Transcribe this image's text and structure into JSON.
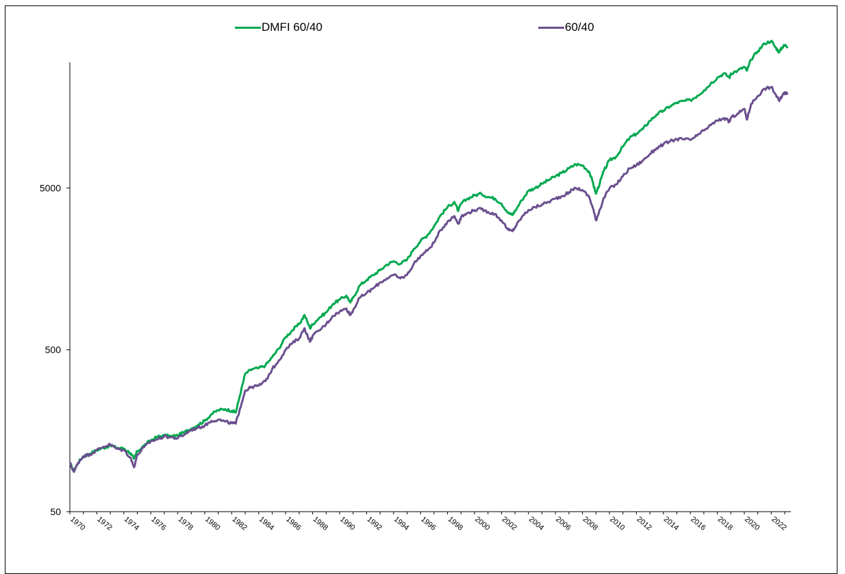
{
  "chart_data": {
    "type": "line",
    "title": "",
    "xlabel": "",
    "ylabel": "",
    "y_scale": "log",
    "ylim": [
      50,
      50000
    ],
    "xlim": [
      1970,
      2023.2
    ],
    "y_ticks": [
      "50",
      "500",
      "5000"
    ],
    "x_ticks": [
      "1970",
      "1972",
      "1974",
      "1976",
      "1978",
      "1980",
      "1982",
      "1984",
      "1986",
      "1988",
      "1990",
      "1992",
      "1994",
      "1996",
      "1998",
      "2000",
      "2002",
      "2004",
      "2006",
      "2008",
      "2010",
      "2012",
      "2014",
      "2016",
      "2018",
      "2020",
      "2022"
    ],
    "grid": false,
    "legend_position": "top",
    "series": [
      {
        "name": "DMFI 60/40",
        "color": "#00a84f",
        "points": [
          [
            1970.0,
            100
          ],
          [
            1970.3,
            89
          ],
          [
            1970.6,
            100
          ],
          [
            1971.0,
            110
          ],
          [
            1971.5,
            114
          ],
          [
            1972.0,
            120
          ],
          [
            1972.5,
            124
          ],
          [
            1973.0,
            128
          ],
          [
            1973.5,
            124
          ],
          [
            1974.0,
            123
          ],
          [
            1974.5,
            115
          ],
          [
            1974.75,
            106
          ],
          [
            1975.0,
            118
          ],
          [
            1975.5,
            128
          ],
          [
            1976.0,
            138
          ],
          [
            1976.5,
            145
          ],
          [
            1977.0,
            148
          ],
          [
            1977.5,
            146
          ],
          [
            1978.0,
            148
          ],
          [
            1978.5,
            155
          ],
          [
            1979.0,
            163
          ],
          [
            1979.5,
            172
          ],
          [
            1980.0,
            182
          ],
          [
            1980.5,
            200
          ],
          [
            1981.0,
            212
          ],
          [
            1981.5,
            215
          ],
          [
            1982.0,
            210
          ],
          [
            1982.3,
            205
          ],
          [
            1982.6,
            260
          ],
          [
            1983.0,
            355
          ],
          [
            1983.5,
            380
          ],
          [
            1984.0,
            385
          ],
          [
            1984.5,
            400
          ],
          [
            1985.0,
            450
          ],
          [
            1985.5,
            510
          ],
          [
            1986.0,
            600
          ],
          [
            1986.5,
            660
          ],
          [
            1987.0,
            720
          ],
          [
            1987.4,
            820
          ],
          [
            1987.8,
            680
          ],
          [
            1988.0,
            720
          ],
          [
            1988.5,
            790
          ],
          [
            1989.0,
            850
          ],
          [
            1989.5,
            960
          ],
          [
            1990.0,
            1020
          ],
          [
            1990.5,
            1080
          ],
          [
            1990.8,
            980
          ],
          [
            1991.0,
            1050
          ],
          [
            1991.5,
            1250
          ],
          [
            1992.0,
            1350
          ],
          [
            1992.5,
            1450
          ],
          [
            1993.0,
            1550
          ],
          [
            1993.5,
            1680
          ],
          [
            1994.0,
            1760
          ],
          [
            1994.5,
            1700
          ],
          [
            1995.0,
            1800
          ],
          [
            1995.5,
            2100
          ],
          [
            1996.0,
            2350
          ],
          [
            1996.5,
            2550
          ],
          [
            1997.0,
            2900
          ],
          [
            1997.5,
            3400
          ],
          [
            1998.0,
            3800
          ],
          [
            1998.5,
            4100
          ],
          [
            1998.8,
            3600
          ],
          [
            1999.0,
            4000
          ],
          [
            1999.5,
            4300
          ],
          [
            2000.0,
            4500
          ],
          [
            2000.5,
            4600
          ],
          [
            2001.0,
            4400
          ],
          [
            2001.5,
            4300
          ],
          [
            2002.0,
            4000
          ],
          [
            2002.5,
            3500
          ],
          [
            2002.8,
            3400
          ],
          [
            2003.0,
            3600
          ],
          [
            2003.5,
            4200
          ],
          [
            2004.0,
            4800
          ],
          [
            2004.5,
            5000
          ],
          [
            2005.0,
            5300
          ],
          [
            2005.5,
            5600
          ],
          [
            2006.0,
            5900
          ],
          [
            2006.5,
            6200
          ],
          [
            2007.0,
            6600
          ],
          [
            2007.5,
            7000
          ],
          [
            2008.0,
            6900
          ],
          [
            2008.5,
            6300
          ],
          [
            2008.8,
            5300
          ],
          [
            2009.0,
            4600
          ],
          [
            2009.3,
            5400
          ],
          [
            2009.6,
            6400
          ],
          [
            2010.0,
            7400
          ],
          [
            2010.5,
            7800
          ],
          [
            2011.0,
            9000
          ],
          [
            2011.5,
            10200
          ],
          [
            2012.0,
            10800
          ],
          [
            2012.5,
            11600
          ],
          [
            2013.0,
            13000
          ],
          [
            2013.5,
            14200
          ],
          [
            2014.0,
            15000
          ],
          [
            2014.5,
            16000
          ],
          [
            2015.0,
            16800
          ],
          [
            2015.5,
            17200
          ],
          [
            2016.0,
            17400
          ],
          [
            2016.5,
            18500
          ],
          [
            2017.0,
            20000
          ],
          [
            2017.5,
            22000
          ],
          [
            2018.0,
            24000
          ],
          [
            2018.5,
            25500
          ],
          [
            2018.9,
            24000
          ],
          [
            2019.0,
            25500
          ],
          [
            2019.5,
            26500
          ],
          [
            2020.0,
            28000
          ],
          [
            2020.2,
            26500
          ],
          [
            2020.5,
            31000
          ],
          [
            2021.0,
            35000
          ],
          [
            2021.5,
            39000
          ],
          [
            2022.0,
            40500
          ],
          [
            2022.3,
            37000
          ],
          [
            2022.6,
            34500
          ],
          [
            2022.8,
            37000
          ],
          [
            2023.0,
            38000
          ],
          [
            2023.2,
            37500
          ]
        ]
      },
      {
        "name": "60/40",
        "color": "#6a4f8e",
        "points": [
          [
            1970.0,
            100
          ],
          [
            1970.3,
            88
          ],
          [
            1970.6,
            100
          ],
          [
            1971.0,
            110
          ],
          [
            1971.5,
            113
          ],
          [
            1972.0,
            120
          ],
          [
            1972.5,
            126
          ],
          [
            1973.0,
            130
          ],
          [
            1973.5,
            122
          ],
          [
            1974.0,
            120
          ],
          [
            1974.5,
            108
          ],
          [
            1974.75,
            94
          ],
          [
            1975.0,
            112
          ],
          [
            1975.5,
            125
          ],
          [
            1976.0,
            136
          ],
          [
            1976.5,
            140
          ],
          [
            1977.0,
            146
          ],
          [
            1977.5,
            144
          ],
          [
            1978.0,
            142
          ],
          [
            1978.5,
            150
          ],
          [
            1979.0,
            160
          ],
          [
            1979.5,
            165
          ],
          [
            1980.0,
            170
          ],
          [
            1980.5,
            182
          ],
          [
            1981.0,
            185
          ],
          [
            1981.5,
            180
          ],
          [
            1982.0,
            176
          ],
          [
            1982.3,
            175
          ],
          [
            1982.6,
            215
          ],
          [
            1983.0,
            280
          ],
          [
            1983.5,
            295
          ],
          [
            1984.0,
            300
          ],
          [
            1984.5,
            320
          ],
          [
            1985.0,
            380
          ],
          [
            1985.5,
            430
          ],
          [
            1986.0,
            500
          ],
          [
            1986.5,
            550
          ],
          [
            1987.0,
            590
          ],
          [
            1987.4,
            680
          ],
          [
            1987.8,
            560
          ],
          [
            1988.0,
            610
          ],
          [
            1988.5,
            660
          ],
          [
            1989.0,
            720
          ],
          [
            1989.5,
            810
          ],
          [
            1990.0,
            860
          ],
          [
            1990.5,
            900
          ],
          [
            1990.8,
            820
          ],
          [
            1991.0,
            880
          ],
          [
            1991.5,
            1050
          ],
          [
            1992.0,
            1120
          ],
          [
            1992.5,
            1200
          ],
          [
            1993.0,
            1300
          ],
          [
            1993.5,
            1380
          ],
          [
            1994.0,
            1450
          ],
          [
            1994.5,
            1380
          ],
          [
            1995.0,
            1450
          ],
          [
            1995.5,
            1700
          ],
          [
            1996.0,
            1900
          ],
          [
            1996.5,
            2050
          ],
          [
            1997.0,
            2300
          ],
          [
            1997.5,
            2750
          ],
          [
            1998.0,
            3100
          ],
          [
            1998.5,
            3350
          ],
          [
            1998.8,
            3000
          ],
          [
            1999.0,
            3300
          ],
          [
            1999.5,
            3500
          ],
          [
            2000.0,
            3650
          ],
          [
            2000.5,
            3700
          ],
          [
            2001.0,
            3550
          ],
          [
            2001.5,
            3450
          ],
          [
            2002.0,
            3150
          ],
          [
            2002.5,
            2750
          ],
          [
            2002.8,
            2700
          ],
          [
            2003.0,
            2850
          ],
          [
            2003.5,
            3300
          ],
          [
            2004.0,
            3650
          ],
          [
            2004.5,
            3800
          ],
          [
            2005.0,
            3950
          ],
          [
            2005.5,
            4100
          ],
          [
            2006.0,
            4300
          ],
          [
            2006.5,
            4450
          ],
          [
            2007.0,
            4700
          ],
          [
            2007.5,
            5000
          ],
          [
            2008.0,
            4850
          ],
          [
            2008.5,
            4400
          ],
          [
            2008.8,
            3700
          ],
          [
            2009.0,
            3150
          ],
          [
            2009.3,
            3700
          ],
          [
            2009.6,
            4350
          ],
          [
            2010.0,
            4950
          ],
          [
            2010.5,
            5250
          ],
          [
            2011.0,
            5900
          ],
          [
            2011.5,
            6600
          ],
          [
            2012.0,
            6900
          ],
          [
            2012.5,
            7400
          ],
          [
            2013.0,
            8100
          ],
          [
            2013.5,
            8800
          ],
          [
            2014.0,
            9300
          ],
          [
            2014.5,
            9700
          ],
          [
            2015.0,
            10000
          ],
          [
            2015.5,
            10000
          ],
          [
            2016.0,
            9900
          ],
          [
            2016.5,
            10500
          ],
          [
            2017.0,
            11300
          ],
          [
            2017.5,
            12200
          ],
          [
            2018.0,
            13000
          ],
          [
            2018.5,
            13500
          ],
          [
            2018.9,
            12800
          ],
          [
            2019.0,
            13500
          ],
          [
            2019.5,
            14400
          ],
          [
            2020.0,
            15400
          ],
          [
            2020.2,
            13200
          ],
          [
            2020.5,
            16500
          ],
          [
            2021.0,
            18500
          ],
          [
            2021.5,
            20500
          ],
          [
            2022.0,
            21000
          ],
          [
            2022.3,
            19000
          ],
          [
            2022.6,
            17200
          ],
          [
            2022.8,
            18500
          ],
          [
            2023.0,
            19500
          ],
          [
            2023.2,
            19300
          ]
        ]
      }
    ]
  }
}
